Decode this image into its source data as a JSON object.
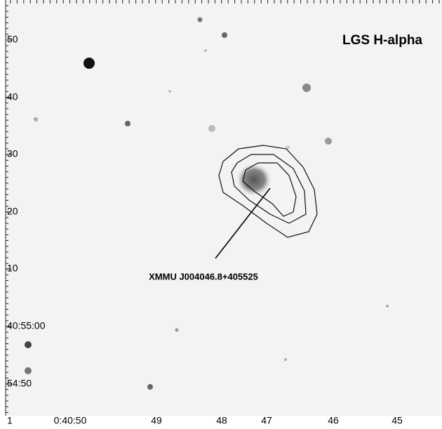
{
  "image": {
    "title": "LGS H-alpha",
    "source_label": "XMMU J004046.8+405525"
  },
  "y_axis": {
    "labels": [
      "50",
      "40",
      "30",
      "20",
      "10",
      "40:55:00",
      "54:50"
    ]
  },
  "x_axis": {
    "labels": [
      "1",
      "0:40:50",
      "49",
      "48",
      "47",
      "46",
      "45"
    ]
  }
}
